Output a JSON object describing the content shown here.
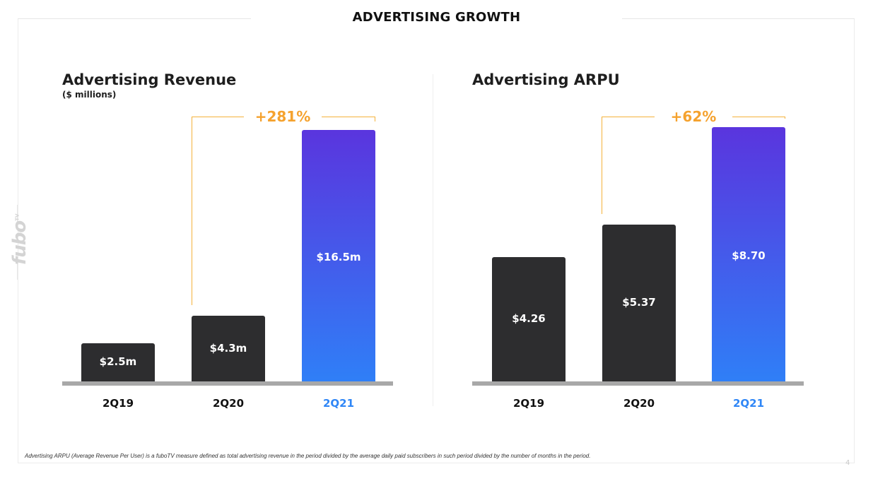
{
  "slide": {
    "title": "ADVERTISING GROWTH",
    "logo": "fubo",
    "logo_tv": "TV",
    "footnote": "Advertising ARPU (Average Revenue Per User) is a fuboTV measure defined as total advertising revenue in the period divided by the average daily paid subscribers in such period divided by the number of months in the period.",
    "page_number": "4"
  },
  "colors": {
    "dark_bar": "#2d2d2f",
    "accent_top": "#5a35de",
    "accent_bottom": "#2f7ff7",
    "growth": "#f5a22e",
    "highlight_category": "#2f86f6"
  },
  "chart_data": [
    {
      "type": "bar",
      "title": "Advertising Revenue",
      "subtitle": "($ millions)",
      "categories": [
        "2Q19",
        "2Q20",
        "2Q21"
      ],
      "values": [
        2.5,
        4.3,
        16.5
      ],
      "data_labels": [
        "$2.5m",
        "$4.3m",
        "$16.5m"
      ],
      "highlight_index": 2,
      "growth_label": "+281%",
      "ylim": [
        0,
        19
      ],
      "grid": false
    },
    {
      "type": "bar",
      "title": "Advertising ARPU",
      "subtitle": "",
      "categories": [
        "2Q19",
        "2Q20",
        "2Q21"
      ],
      "values": [
        4.26,
        5.37,
        8.7
      ],
      "data_labels": [
        "$4.26",
        "$5.37",
        "$8.70"
      ],
      "highlight_index": 2,
      "growth_label": "+62%",
      "ylim": [
        0,
        9.9
      ],
      "grid": false
    }
  ]
}
